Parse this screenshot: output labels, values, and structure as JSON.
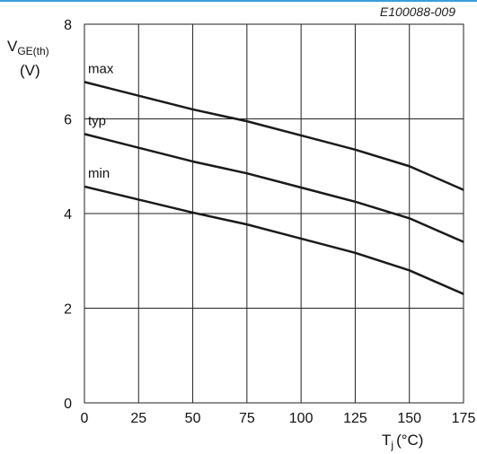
{
  "figure_code": "E100088-009",
  "colors": {
    "accent_rule": "#3aa0d8",
    "grid": "#222222",
    "curve": "#1a1a1a"
  },
  "chart_data": {
    "type": "line",
    "title": "",
    "ylabel": {
      "symbol": "V",
      "subscript": "GE(th)",
      "unit": "(V)"
    },
    "xlabel": {
      "symbol": "T",
      "subscript": "j",
      "unit": "(°C)"
    },
    "xlim": [
      0,
      175
    ],
    "ylim": [
      0,
      8
    ],
    "xticks": [
      0,
      25,
      50,
      75,
      100,
      125,
      150,
      175
    ],
    "yticks": [
      0,
      2,
      4,
      6,
      8
    ],
    "grid": true,
    "series": [
      {
        "name": "max",
        "x": [
          0,
          50,
          75,
          100,
          125,
          150,
          175
        ],
        "y": [
          6.78,
          6.2,
          5.95,
          5.65,
          5.35,
          5.0,
          4.5
        ]
      },
      {
        "name": "typ",
        "x": [
          0,
          50,
          75,
          100,
          125,
          150,
          175
        ],
        "y": [
          5.68,
          5.1,
          4.85,
          4.55,
          4.25,
          3.9,
          3.4
        ]
      },
      {
        "name": "min",
        "x": [
          0,
          50,
          75,
          100,
          125,
          150,
          175
        ],
        "y": [
          4.57,
          4.02,
          3.77,
          3.47,
          3.17,
          2.8,
          2.3
        ]
      }
    ]
  }
}
